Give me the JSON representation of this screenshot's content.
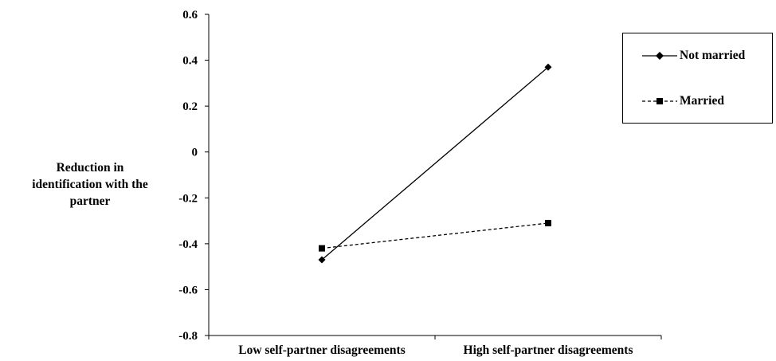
{
  "chart_data": {
    "type": "line",
    "title": "",
    "ylabel_lines": [
      "Reduction in",
      "identification with the",
      "partner"
    ],
    "xlabel": "",
    "categories": [
      "Low self-partner disagreements",
      "High self-partner disagreements"
    ],
    "ylim": [
      -0.8,
      0.6
    ],
    "yticks": [
      0.6,
      0.4,
      0.2,
      0,
      -0.2,
      -0.4,
      -0.6,
      -0.8
    ],
    "ytick_labels": [
      "0.6",
      "0.4",
      "0.2",
      "0",
      "-0.2",
      "-0.4",
      "-0.6",
      "-0.8"
    ],
    "grid": false,
    "legend_position": "top-right",
    "series": [
      {
        "name": "Not married",
        "values": [
          -0.47,
          0.37
        ],
        "line_style": "solid",
        "marker": "diamond",
        "color": "#000000"
      },
      {
        "name": "Married",
        "values": [
          -0.42,
          -0.31
        ],
        "line_style": "dashed",
        "marker": "square",
        "color": "#000000"
      }
    ]
  }
}
